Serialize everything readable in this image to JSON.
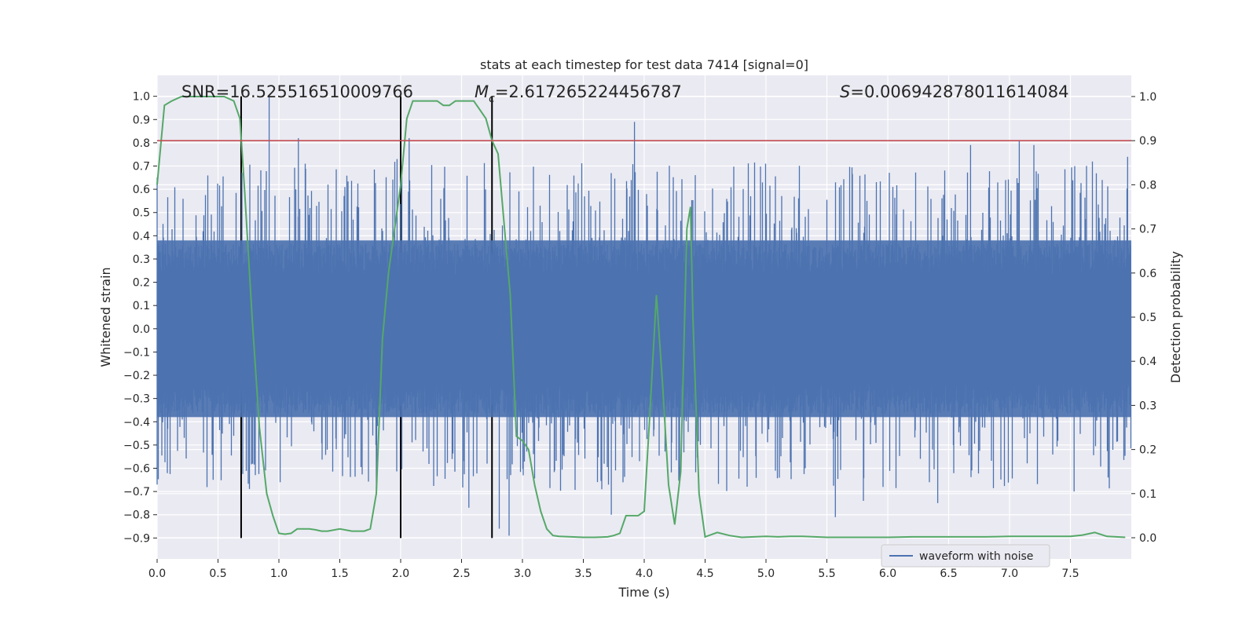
{
  "chart_data": {
    "type": "line",
    "title": "stats at each timestep for test data 7414 [signal=0]",
    "xlabel": "Time (s)",
    "ylabel": "Whitened strain",
    "y2label": "Detection probability",
    "xlim": [
      0.0,
      8.0
    ],
    "ylim": [
      -0.99,
      1.09
    ],
    "y2lim": [
      -0.048,
      1.048
    ],
    "x_ticks": [
      0.0,
      0.5,
      1.0,
      1.5,
      2.0,
      2.5,
      3.0,
      3.5,
      4.0,
      4.5,
      5.0,
      5.5,
      6.0,
      6.5,
      7.0,
      7.5
    ],
    "x_tick_labels": [
      "0.0",
      "0.5",
      "1.0",
      "1.5",
      "2.0",
      "2.5",
      "3.0",
      "3.5",
      "4.0",
      "4.5",
      "5.0",
      "5.5",
      "6.0",
      "6.5",
      "7.0",
      "7.5"
    ],
    "y_ticks": [
      -0.9,
      -0.8,
      -0.7,
      -0.6,
      -0.5,
      -0.4,
      -0.3,
      -0.2,
      -0.1,
      0.0,
      0.1,
      0.2,
      0.3,
      0.4,
      0.5,
      0.6,
      0.7,
      0.8,
      0.9,
      1.0
    ],
    "y_tick_labels": [
      "−0.9",
      "−0.8",
      "−0.7",
      "−0.6",
      "−0.5",
      "−0.4",
      "−0.3",
      "−0.2",
      "−0.1",
      "0.0",
      "0.1",
      "0.2",
      "0.3",
      "0.4",
      "0.5",
      "0.6",
      "0.7",
      "0.8",
      "0.9",
      "1.0"
    ],
    "y2_ticks": [
      0.0,
      0.1,
      0.2,
      0.3,
      0.4,
      0.5,
      0.6,
      0.7,
      0.8,
      0.9,
      1.0
    ],
    "y2_tick_labels": [
      "0.0",
      "0.1",
      "0.2",
      "0.3",
      "0.4",
      "0.5",
      "0.6",
      "0.7",
      "0.8",
      "0.9",
      "1.0"
    ],
    "stats": {
      "snr": "SNR=16.525516510009766",
      "mc_prefix": "M",
      "mc_sub": "c",
      "mc_value": "=2.617265224456787",
      "s_prefix": "S",
      "s_value": "=0.006942878011614084"
    },
    "threshold": {
      "axis": "right",
      "value": 0.9
    },
    "vlines": [
      0.69,
      2.0,
      2.75
    ],
    "legend": {
      "label": "waveform with noise",
      "position": "lower-right"
    },
    "waveform": {
      "name": "waveform with noise",
      "envelope_upper": 0.38,
      "envelope_lower": -0.38,
      "peaks": [
        {
          "x": 0.0,
          "y": 0.65
        },
        {
          "x": 0.0,
          "y": -0.67
        },
        {
          "x": 0.92,
          "y": 1.0
        },
        {
          "x": 1.16,
          "y": 0.82
        },
        {
          "x": 1.01,
          "y": -0.66
        },
        {
          "x": 0.46,
          "y": -0.65
        },
        {
          "x": 1.97,
          "y": 0.73
        },
        {
          "x": 2.07,
          "y": 0.82
        },
        {
          "x": 2.56,
          "y": -0.77
        },
        {
          "x": 2.81,
          "y": -0.86
        },
        {
          "x": 2.89,
          "y": -0.89
        },
        {
          "x": 3.92,
          "y": 0.89
        },
        {
          "x": 3.73,
          "y": -0.8
        },
        {
          "x": 5.57,
          "y": -0.81
        },
        {
          "x": 5.8,
          "y": -0.74
        },
        {
          "x": 6.41,
          "y": -0.75
        },
        {
          "x": 6.68,
          "y": 0.79
        },
        {
          "x": 7.08,
          "y": 0.81
        },
        {
          "x": 7.2,
          "y": 0.79
        },
        {
          "x": 7.53,
          "y": -0.7
        },
        {
          "x": 7.97,
          "y": 0.74
        }
      ]
    },
    "probability": {
      "name": "detection probability",
      "x": [
        0.0,
        0.06,
        0.12,
        0.2,
        0.3,
        0.4,
        0.5,
        0.55,
        0.63,
        0.68,
        0.72,
        0.78,
        0.84,
        0.9,
        0.95,
        1.0,
        1.05,
        1.1,
        1.15,
        1.2,
        1.25,
        1.3,
        1.35,
        1.4,
        1.5,
        1.6,
        1.7,
        1.75,
        1.8,
        1.85,
        1.9,
        1.95,
        2.0,
        2.05,
        2.1,
        2.15,
        2.2,
        2.25,
        2.3,
        2.35,
        2.4,
        2.45,
        2.5,
        2.55,
        2.6,
        2.65,
        2.7,
        2.75,
        2.8,
        2.9,
        2.95,
        3.0,
        3.05,
        3.1,
        3.15,
        3.2,
        3.25,
        3.3,
        3.4,
        3.5,
        3.6,
        3.7,
        3.75,
        3.8,
        3.85,
        3.9,
        3.95,
        4.0,
        4.05,
        4.1,
        4.15,
        4.2,
        4.25,
        4.3,
        4.35,
        4.38,
        4.4,
        4.45,
        4.5,
        4.6,
        4.7,
        4.8,
        4.9,
        5.0,
        5.1,
        5.2,
        5.3,
        5.4,
        5.5,
        5.6,
        5.8,
        6.0,
        6.2,
        6.4,
        6.6,
        6.8,
        7.0,
        7.2,
        7.4,
        7.5,
        7.6,
        7.7,
        7.8,
        7.95
      ],
      "y": [
        0.8,
        0.98,
        0.99,
        1.0,
        1.0,
        1.0,
        1.0,
        1.0,
        0.99,
        0.95,
        0.78,
        0.5,
        0.25,
        0.1,
        0.05,
        0.01,
        0.008,
        0.01,
        0.02,
        0.02,
        0.02,
        0.018,
        0.015,
        0.015,
        0.02,
        0.015,
        0.015,
        0.02,
        0.1,
        0.45,
        0.6,
        0.7,
        0.8,
        0.95,
        0.99,
        0.99,
        0.99,
        0.99,
        0.99,
        0.98,
        0.98,
        0.99,
        0.99,
        0.99,
        0.99,
        0.97,
        0.95,
        0.9,
        0.87,
        0.55,
        0.23,
        0.22,
        0.2,
        0.12,
        0.06,
        0.02,
        0.005,
        0.003,
        0.002,
        0.001,
        0.001,
        0.002,
        0.005,
        0.01,
        0.05,
        0.05,
        0.05,
        0.06,
        0.3,
        0.55,
        0.35,
        0.12,
        0.03,
        0.15,
        0.7,
        0.75,
        0.5,
        0.1,
        0.002,
        0.012,
        0.005,
        0.001,
        0.002,
        0.003,
        0.002,
        0.003,
        0.003,
        0.002,
        0.001,
        0.001,
        0.001,
        0.001,
        0.002,
        0.002,
        0.002,
        0.002,
        0.003,
        0.003,
        0.003,
        0.003,
        0.006,
        0.012,
        0.003,
        0.001
      ]
    },
    "colors": {
      "background": "#eaeaf2",
      "grid": "#ffffff",
      "waveform": "#4c72b0",
      "probability": "#55a868",
      "threshold": "#c44e52",
      "vline": "#000000",
      "text": "#262626"
    }
  }
}
